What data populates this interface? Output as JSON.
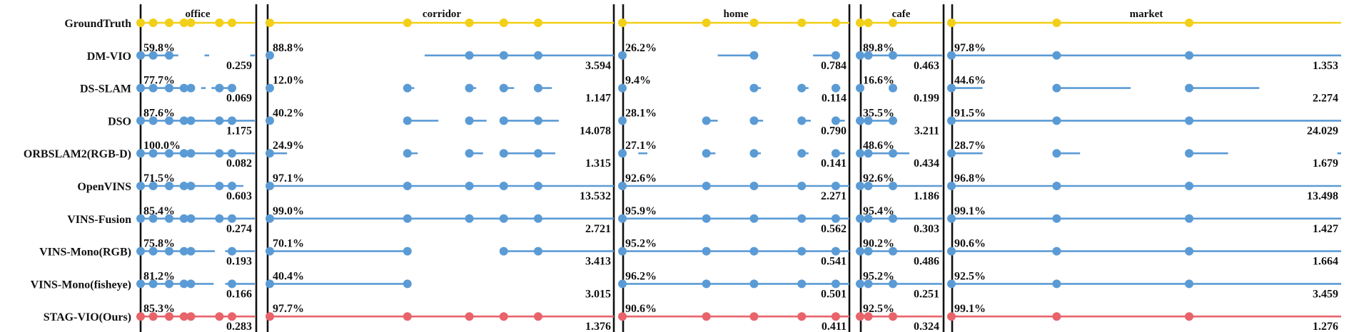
{
  "chart_data": {
    "type": "timeline",
    "colors": {
      "ground_truth": "#f2cf18",
      "method": "#5b9bd5",
      "ours": "#e8636a",
      "divider": "#111111"
    },
    "scenes": [
      {
        "name": "office",
        "markers": [
          0.11,
          0.25,
          0.38,
          0.44,
          0.69,
          0.8
        ]
      },
      {
        "name": "corridor",
        "markers": [
          0.4,
          0.58,
          0.68,
          0.78
        ]
      },
      {
        "name": "home",
        "markers": [
          0.37,
          0.58,
          0.79,
          0.94
        ]
      },
      {
        "name": "cafe",
        "markers": [
          0.1,
          0.4
        ]
      },
      {
        "name": "market",
        "markers": [
          0.27,
          0.61
        ]
      }
    ],
    "methods": [
      {
        "name": "GroundTruth",
        "kind": "ground_truth",
        "results": [
          {
            "completeness": "",
            "rmse": "",
            "segments": [
              [
                0,
                1
              ]
            ]
          },
          {
            "completeness": "",
            "rmse": "",
            "segments": [
              [
                0,
                1
              ]
            ]
          },
          {
            "completeness": "",
            "rmse": "",
            "segments": [
              [
                0,
                1
              ]
            ]
          },
          {
            "completeness": "",
            "rmse": "",
            "segments": [
              [
                0,
                1
              ]
            ]
          },
          {
            "completeness": "",
            "rmse": "",
            "segments": [
              [
                0,
                1
              ]
            ]
          }
        ]
      },
      {
        "name": "DM-VIO",
        "kind": "method",
        "results": [
          {
            "completeness": "59.8%",
            "rmse": "0.259",
            "segments": [
              [
                0,
                0.33
              ],
              [
                0.56,
                0.6
              ],
              [
                0.96,
                1
              ]
            ]
          },
          {
            "completeness": "88.8%",
            "rmse": "3.594",
            "segments": [
              [
                0,
                0
              ],
              [
                0.45,
                1
              ]
            ]
          },
          {
            "completeness": "26.2%",
            "rmse": "0.784",
            "segments": [
              [
                0.42,
                0.58
              ],
              [
                0.84,
                0.95
              ]
            ]
          },
          {
            "completeness": "89.8%",
            "rmse": "0.463",
            "segments": [
              [
                0,
                1
              ]
            ]
          },
          {
            "completeness": "97.8%",
            "rmse": "1.353",
            "segments": [
              [
                0,
                1
              ]
            ]
          }
        ]
      },
      {
        "name": "DS-SLAM",
        "kind": "method",
        "results": [
          {
            "completeness": "77.7%",
            "rmse": "0.069",
            "segments": [
              [
                0,
                0.44
              ],
              [
                0.53,
                0.57
              ],
              [
                0.62,
                0.8
              ]
            ]
          },
          {
            "completeness": "12.0%",
            "rmse": "1.147",
            "segments": [
              [
                0,
                0
              ],
              [
                0.4,
                0.42
              ],
              [
                0.58,
                0.6
              ],
              [
                0.68,
                0.71
              ],
              [
                0.78,
                0.82
              ]
            ]
          },
          {
            "completeness": "9.4%",
            "rmse": "0.114",
            "segments": [
              [
                0,
                0
              ],
              [
                0.58,
                0.61
              ],
              [
                0.79,
                0.82
              ],
              [
                0.94,
                0.96
              ]
            ]
          },
          {
            "completeness": "16.6%",
            "rmse": "0.199",
            "segments": [
              [
                0,
                0
              ],
              [
                0.4,
                0.45
              ]
            ]
          },
          {
            "completeness": "44.6%",
            "rmse": "2.274",
            "segments": [
              [
                0,
                0.08
              ],
              [
                0.27,
                0.46
              ],
              [
                0.61,
                0.79
              ]
            ]
          }
        ]
      },
      {
        "name": "DSO",
        "kind": "method",
        "results": [
          {
            "completeness": "87.6%",
            "rmse": "1.175",
            "segments": [
              [
                0,
                1
              ]
            ]
          },
          {
            "completeness": "40.2%",
            "rmse": "14.078",
            "segments": [
              [
                0,
                0
              ],
              [
                0.4,
                0.49
              ],
              [
                0.58,
                0.63
              ],
              [
                0.68,
                0.84
              ]
            ]
          },
          {
            "completeness": "28.1%",
            "rmse": "0.790",
            "segments": [
              [
                0,
                0
              ],
              [
                0.37,
                0.42
              ],
              [
                0.58,
                0.62
              ],
              [
                0.79,
                0.83
              ],
              [
                0.94,
                0.98
              ]
            ]
          },
          {
            "completeness": "35.5%",
            "rmse": "3.211",
            "segments": [
              [
                0,
                0.45
              ]
            ]
          },
          {
            "completeness": "91.5%",
            "rmse": "24.029",
            "segments": [
              [
                0,
                1
              ]
            ]
          }
        ]
      },
      {
        "name": "ORBSLAM2(RGB-D)",
        "kind": "method",
        "results": [
          {
            "completeness": "100.0%",
            "rmse": "0.082",
            "segments": [
              [
                0,
                1
              ]
            ]
          },
          {
            "completeness": "24.9%",
            "rmse": "1.315",
            "segments": [
              [
                0,
                0.05
              ],
              [
                0.4,
                0.43
              ],
              [
                0.58,
                0.62
              ],
              [
                0.68,
                0.83
              ]
            ]
          },
          {
            "completeness": "27.1%",
            "rmse": "0.141",
            "segments": [
              [
                0,
                0
              ],
              [
                0.07,
                0.11
              ],
              [
                0.37,
                0.41
              ],
              [
                0.58,
                0.61
              ],
              [
                0.79,
                0.82
              ],
              [
                0.94,
                0.98
              ]
            ]
          },
          {
            "completeness": "48.6%",
            "rmse": "0.434",
            "segments": [
              [
                0,
                0.6
              ]
            ]
          },
          {
            "completeness": "28.7%",
            "rmse": "1.679",
            "segments": [
              [
                0,
                0.08
              ],
              [
                0.27,
                0.33
              ],
              [
                0.61,
                0.71
              ],
              [
                0.99,
                1
              ]
            ]
          }
        ]
      },
      {
        "name": "OpenVINS",
        "kind": "method",
        "results": [
          {
            "completeness": "71.5%",
            "rmse": "0.603",
            "segments": [
              [
                0,
                0.9
              ]
            ]
          },
          {
            "completeness": "97.1%",
            "rmse": "13.532",
            "segments": [
              [
                0,
                1
              ]
            ]
          },
          {
            "completeness": "92.6%",
            "rmse": "2.271",
            "segments": [
              [
                0,
                1
              ]
            ]
          },
          {
            "completeness": "92.6%",
            "rmse": "1.186",
            "segments": [
              [
                0,
                1
              ]
            ]
          },
          {
            "completeness": "96.8%",
            "rmse": "13.498",
            "segments": [
              [
                0,
                1
              ]
            ]
          }
        ]
      },
      {
        "name": "VINS-Fusion",
        "kind": "method",
        "results": [
          {
            "completeness": "85.4%",
            "rmse": "0.274",
            "segments": [
              [
                0,
                1
              ]
            ]
          },
          {
            "completeness": "99.0%",
            "rmse": "2.721",
            "segments": [
              [
                0,
                1
              ]
            ]
          },
          {
            "completeness": "95.9%",
            "rmse": "0.562",
            "segments": [
              [
                0,
                1
              ]
            ]
          },
          {
            "completeness": "95.4%",
            "rmse": "0.303",
            "segments": [
              [
                0,
                1
              ]
            ]
          },
          {
            "completeness": "99.1%",
            "rmse": "1.427",
            "segments": [
              [
                0,
                1
              ]
            ]
          }
        ]
      },
      {
        "name": "VINS-Mono(RGB)",
        "kind": "method",
        "results": [
          {
            "completeness": "75.8%",
            "rmse": "0.193",
            "segments": [
              [
                0,
                0.65
              ],
              [
                0.74,
                1
              ]
            ]
          },
          {
            "completeness": "70.1%",
            "rmse": "3.413",
            "segments": [
              [
                0,
                0.41
              ],
              [
                0.68,
                1
              ]
            ]
          },
          {
            "completeness": "95.2%",
            "rmse": "0.541",
            "segments": [
              [
                0,
                1
              ]
            ]
          },
          {
            "completeness": "90.2%",
            "rmse": "0.486",
            "segments": [
              [
                0,
                1
              ]
            ]
          },
          {
            "completeness": "90.6%",
            "rmse": "1.664",
            "segments": [
              [
                0,
                1
              ]
            ]
          }
        ]
      },
      {
        "name": "VINS-Mono(fisheye)",
        "kind": "method",
        "results": [
          {
            "completeness": "81.2%",
            "rmse": "0.166",
            "segments": [
              [
                0,
                0.64
              ],
              [
                0.74,
                1
              ]
            ]
          },
          {
            "completeness": "40.4%",
            "rmse": "3.015",
            "segments": [
              [
                0,
                0.41
              ]
            ]
          },
          {
            "completeness": "96.2%",
            "rmse": "0.501",
            "segments": [
              [
                0,
                1
              ]
            ]
          },
          {
            "completeness": "95.2%",
            "rmse": "0.251",
            "segments": [
              [
                0,
                1
              ]
            ]
          },
          {
            "completeness": "92.5%",
            "rmse": "3.459",
            "segments": [
              [
                0,
                1
              ]
            ]
          }
        ]
      },
      {
        "name": "STAG-VIO(Ours)",
        "kind": "ours",
        "results": [
          {
            "completeness": "85.3%",
            "rmse": "0.283",
            "segments": [
              [
                0,
                1
              ]
            ]
          },
          {
            "completeness": "97.7%",
            "rmse": "1.376",
            "segments": [
              [
                0,
                1
              ]
            ]
          },
          {
            "completeness": "90.6%",
            "rmse": "0.411",
            "segments": [
              [
                0,
                1
              ]
            ]
          },
          {
            "completeness": "92.5%",
            "rmse": "0.324",
            "segments": [
              [
                0,
                1
              ]
            ]
          },
          {
            "completeness": "99.1%",
            "rmse": "1.276",
            "segments": [
              [
                0,
                1
              ]
            ]
          }
        ]
      }
    ]
  }
}
